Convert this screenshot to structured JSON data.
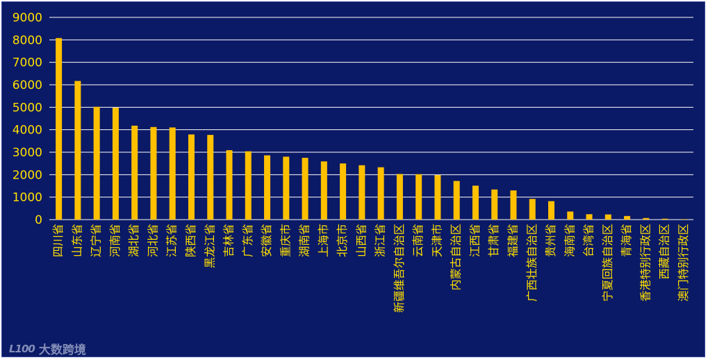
{
  "colors": {
    "background": "#0b1a66",
    "bar": "#ffc000",
    "text": "#ffe000",
    "grid": "#ffffff"
  },
  "watermark": {
    "logo": "L100",
    "text": "大数跨境"
  },
  "chart_data": {
    "type": "bar",
    "title": "",
    "xlabel": "",
    "ylabel": "",
    "ylim": [
      0,
      9000
    ],
    "yticks": [
      0,
      1000,
      2000,
      3000,
      4000,
      5000,
      6000,
      7000,
      8000,
      9000
    ],
    "grid": true,
    "categories": [
      "四川省",
      "山东省",
      "辽宁省",
      "河南省",
      "湖北省",
      "河北省",
      "江苏省",
      "陕西省",
      "黑龙江省",
      "吉林省",
      "广东省",
      "安徽省",
      "重庆市",
      "湖南省",
      "上海市",
      "北京市",
      "山西省",
      "浙江省",
      "新疆维吾尔自治区",
      "云南省",
      "天津市",
      "内蒙古自治区",
      "江西省",
      "甘肃省",
      "福建省",
      "广西壮族自治区",
      "贵州省",
      "海南省",
      "台湾省",
      "宁夏回族自治区",
      "青海省",
      "香港特别行政区",
      "西藏自治区",
      "澳门特别行政区"
    ],
    "values": [
      8080,
      6170,
      5020,
      4980,
      4180,
      4120,
      4100,
      3790,
      3770,
      3090,
      3040,
      2860,
      2800,
      2750,
      2590,
      2500,
      2420,
      2330,
      2030,
      2020,
      1980,
      1720,
      1510,
      1340,
      1300,
      920,
      820,
      360,
      240,
      230,
      160,
      70,
      40,
      20
    ]
  }
}
